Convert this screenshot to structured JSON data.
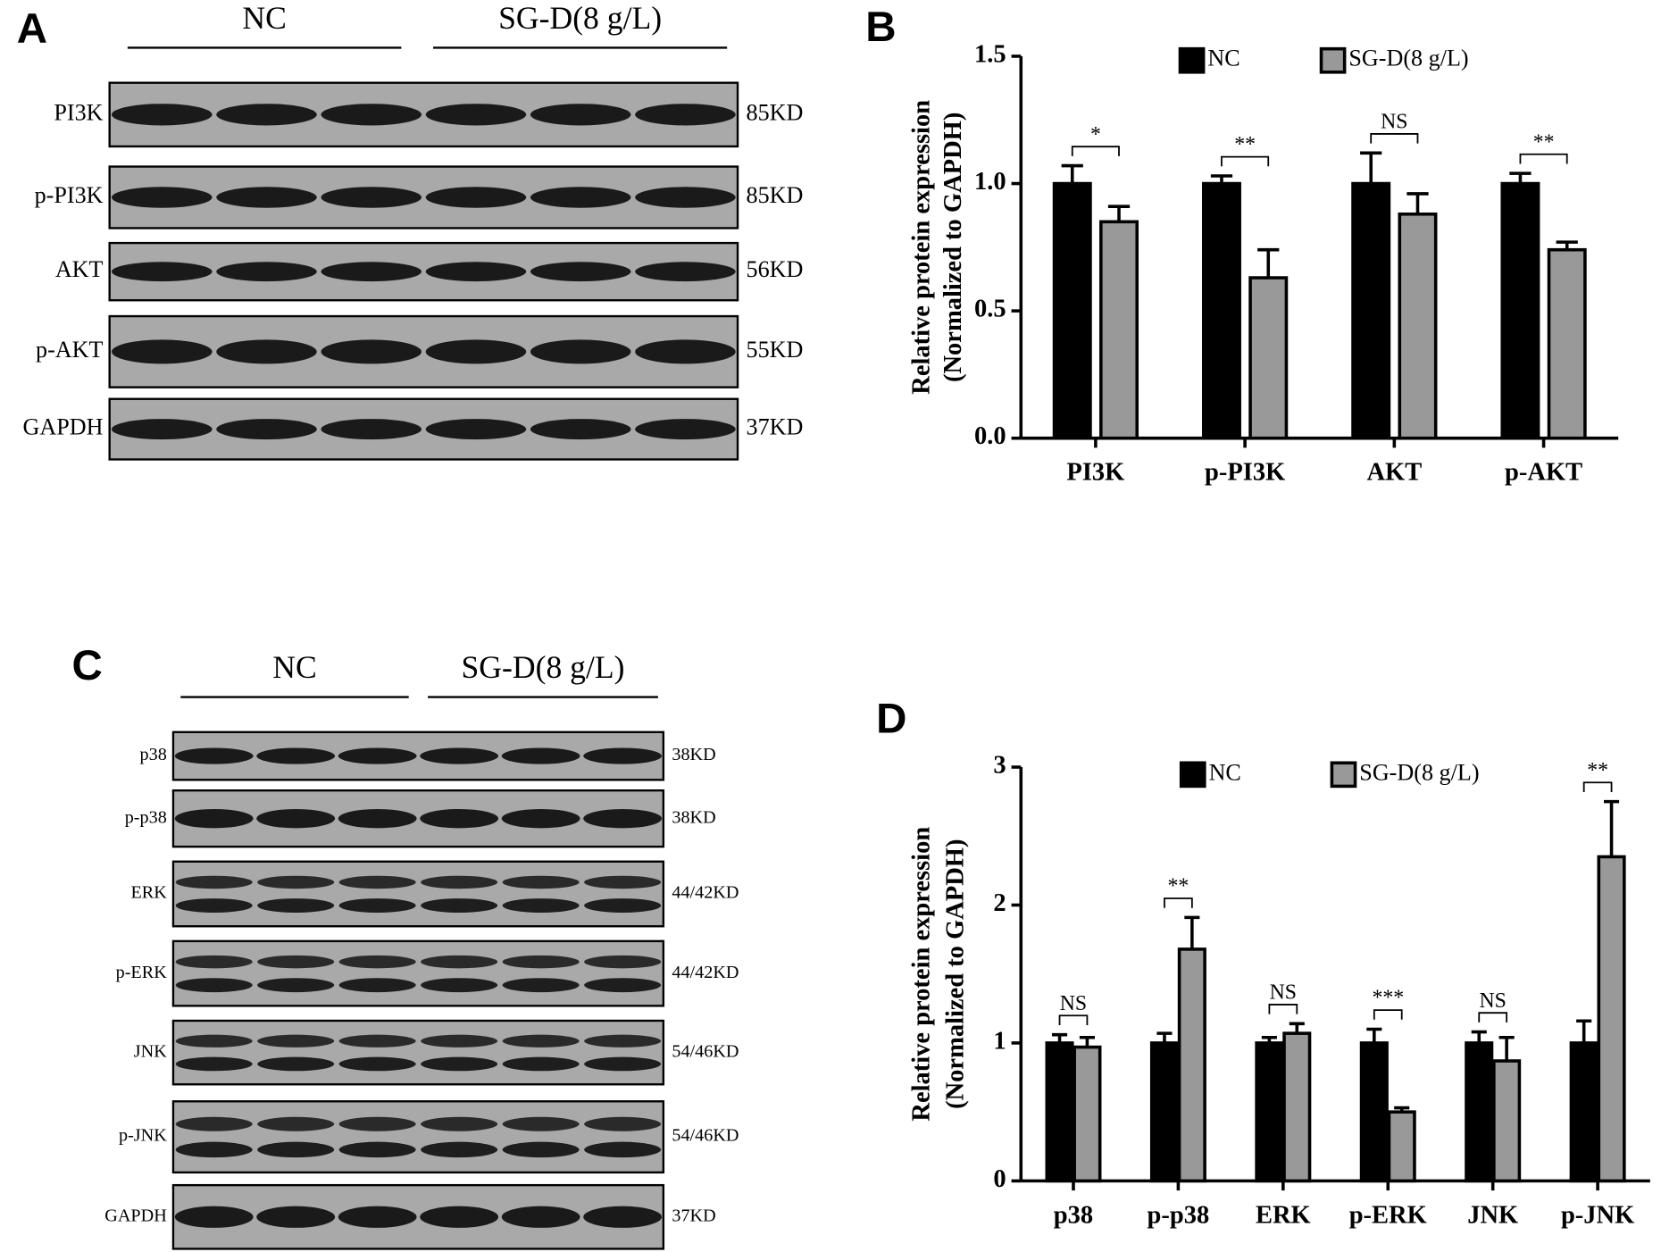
{
  "blots": [
    {
      "panel": "A",
      "groups": [
        "NC",
        "SG-D(8 g/L)"
      ],
      "rows": [
        {
          "label": "PI3K",
          "size": "85KD"
        },
        {
          "label": "p-PI3K",
          "size": "85KD"
        },
        {
          "label": "AKT",
          "size": "56KD"
        },
        {
          "label": "p-AKT",
          "size": "55KD"
        },
        {
          "label": "GAPDH",
          "size": "37KD"
        }
      ]
    },
    {
      "panel": "C",
      "groups": [
        "NC",
        "SG-D(8 g/L)"
      ],
      "rows": [
        {
          "label": "p38",
          "size": "38KD"
        },
        {
          "label": "p-p38",
          "size": "38KD"
        },
        {
          "label": "ERK",
          "size": "44/42KD"
        },
        {
          "label": "p-ERK",
          "size": "44/42KD"
        },
        {
          "label": "JNK",
          "size": "54/46KD"
        },
        {
          "label": "p-JNK",
          "size": "54/46KD"
        },
        {
          "label": "GAPDH",
          "size": "37KD"
        }
      ]
    }
  ],
  "chart_data": [
    {
      "type": "bar",
      "panel": "B",
      "ylabel": [
        "Relative protein expression",
        "(Normalized to GAPDH)"
      ],
      "categories": [
        "PI3K",
        "p-PI3K",
        "AKT",
        "p-AKT"
      ],
      "series": [
        {
          "name": "NC",
          "color": "#000000",
          "values": [
            1,
            1,
            1,
            1
          ],
          "errors": [
            0.07,
            0.03,
            0.12,
            0.04
          ]
        },
        {
          "name": "SG-D(8 g/L)",
          "color": "#999999",
          "values": [
            0.85,
            0.63,
            0.88,
            0.74
          ],
          "errors": [
            0.06,
            0.11,
            0.08,
            0.03
          ]
        }
      ],
      "significance": [
        "*",
        "**",
        "NS",
        "**"
      ],
      "ylim": [
        0,
        1.5
      ],
      "yticks": [
        {
          "value": 0,
          "label": "0.0"
        },
        0.5,
        {
          "value": 1,
          "label": "1.0"
        },
        1.5
      ],
      "legend": "top"
    },
    {
      "type": "bar",
      "panel": "D",
      "ylabel": [
        "Relative protein expression",
        "(Normalized to GAPDH)"
      ],
      "categories": [
        "p38",
        "p-p38",
        "ERK",
        "p-ERK",
        "JNK",
        "p-JNK"
      ],
      "series": [
        {
          "name": "NC",
          "color": "#000000",
          "values": [
            1,
            1,
            1,
            1,
            1,
            1
          ],
          "errors": [
            0.06,
            0.07,
            0.04,
            0.1,
            0.08,
            0.16
          ]
        },
        {
          "name": "SG-D(8 g/L)",
          "color": "#999999",
          "values": [
            0.97,
            1.68,
            1.07,
            0.5,
            0.87,
            2.35
          ],
          "errors": [
            0.07,
            0.23,
            0.07,
            0.03,
            0.17,
            0.4
          ]
        }
      ],
      "significance": [
        "NS",
        "**",
        "NS",
        "***",
        "NS",
        "**"
      ],
      "ylim": [
        0,
        3
      ],
      "yticks": [
        0,
        1,
        2,
        3
      ],
      "legend": "top"
    }
  ]
}
